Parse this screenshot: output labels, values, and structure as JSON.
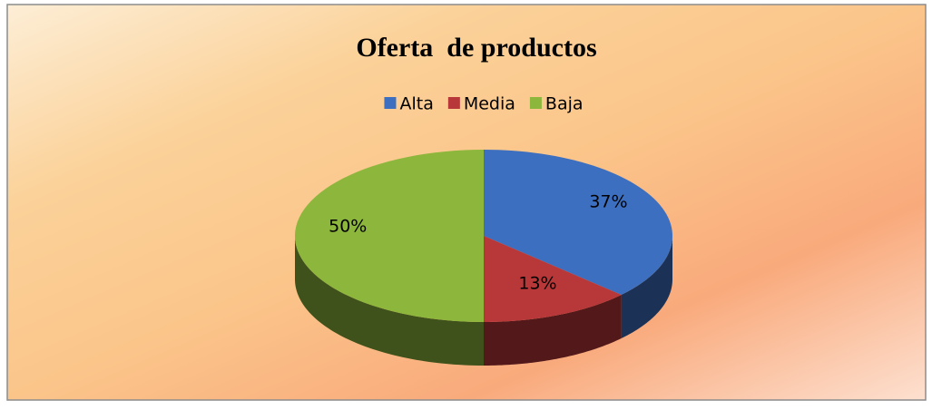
{
  "chart_data": {
    "type": "pie",
    "title": "Oferta  de productos",
    "categories": [
      "Alta",
      "Media",
      "Baja"
    ],
    "values": [
      37,
      13,
      50
    ],
    "value_labels": [
      "37%",
      "13%",
      "50%"
    ],
    "colors": [
      "#3c6fbf",
      "#b8383a",
      "#8db63c"
    ],
    "legend": "top"
  }
}
